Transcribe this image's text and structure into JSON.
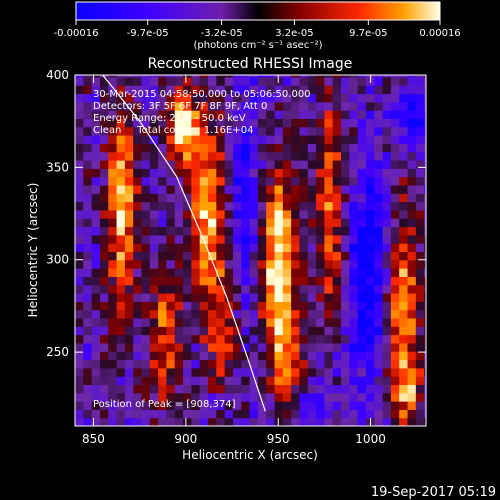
{
  "chart_data": {
    "type": "heatmap",
    "title": "Reconstructed RHESSI Image",
    "xlabel": "Heliocentric X (arcsec)",
    "ylabel": "Heliocentric Y (arcsec)",
    "xlim": [
      840,
      1030
    ],
    "ylim": [
      210,
      400
    ],
    "x_ticks": [
      850,
      900,
      950,
      1000
    ],
    "y_ticks": [
      250,
      300,
      350,
      400
    ],
    "colorbar": {
      "units": "(photons cm⁻² s⁻¹ asec⁻²)",
      "tick_labels": [
        "-0.00016",
        "-9.7e-05",
        "-3.2e-05",
        "3.2e-05",
        "9.7e-05",
        "0.00016"
      ],
      "tick_values": [
        -0.00016,
        -9.7e-05,
        -3.2e-05,
        3.2e-05,
        9.7e-05,
        0.00016
      ]
    },
    "annotations": [
      "30-Mar-2015 04:58:50.000 to 05:06:50.000",
      "Detectors: 3F 5F 6F 7F 8F 9F, Att 0",
      "Energy Range: 25.0 - 50.0 keV",
      "Clean     Total counts: 1.16E+04"
    ],
    "peak_label": "Position of Peak = [908,374]",
    "peak": [
      908,
      374
    ],
    "limb_curve": [
      [
        855,
        400
      ],
      [
        875,
        375
      ],
      [
        895,
        345
      ],
      [
        910,
        310
      ],
      [
        922,
        280
      ],
      [
        934,
        245
      ],
      [
        943,
        218
      ]
    ],
    "bright_bands": [
      {
        "x": 865,
        "y": 330,
        "halfwidth": 8,
        "halfheight": 55,
        "intensity": 0.75
      },
      {
        "x": 888,
        "y": 258,
        "halfwidth": 9,
        "halfheight": 38,
        "intensity": 0.55
      },
      {
        "x": 898,
        "y": 372,
        "halfwidth": 8,
        "halfheight": 20,
        "intensity": 0.85
      },
      {
        "x": 912,
        "y": 325,
        "halfwidth": 9,
        "halfheight": 50,
        "intensity": 0.8
      },
      {
        "x": 921,
        "y": 262,
        "halfwidth": 8,
        "halfheight": 30,
        "intensity": 0.45
      },
      {
        "x": 950,
        "y": 300,
        "halfwidth": 10,
        "halfheight": 50,
        "intensity": 0.9
      },
      {
        "x": 955,
        "y": 245,
        "halfwidth": 8,
        "halfheight": 25,
        "intensity": 0.5
      },
      {
        "x": 978,
        "y": 328,
        "halfwidth": 8,
        "halfheight": 60,
        "intensity": 0.55
      },
      {
        "x": 1016,
        "y": 280,
        "halfwidth": 10,
        "halfheight": 50,
        "intensity": 0.7
      },
      {
        "x": 1020,
        "y": 228,
        "halfwidth": 8,
        "halfheight": 18,
        "intensity": 0.55
      }
    ],
    "dark_bands": [
      {
        "x": 933,
        "y": 330,
        "halfwidth": 9,
        "halfheight": 65,
        "intensity": 0.55
      },
      {
        "x": 1000,
        "y": 290,
        "halfwidth": 12,
        "halfheight": 60,
        "intensity": 0.8
      },
      {
        "x": 1022,
        "y": 378,
        "halfwidth": 9,
        "halfheight": 18,
        "intensity": 0.6
      },
      {
        "x": 970,
        "y": 222,
        "halfwidth": 9,
        "halfheight": 12,
        "intensity": 0.5
      }
    ]
  },
  "timestamp": "19-Sep-2017 05:19"
}
